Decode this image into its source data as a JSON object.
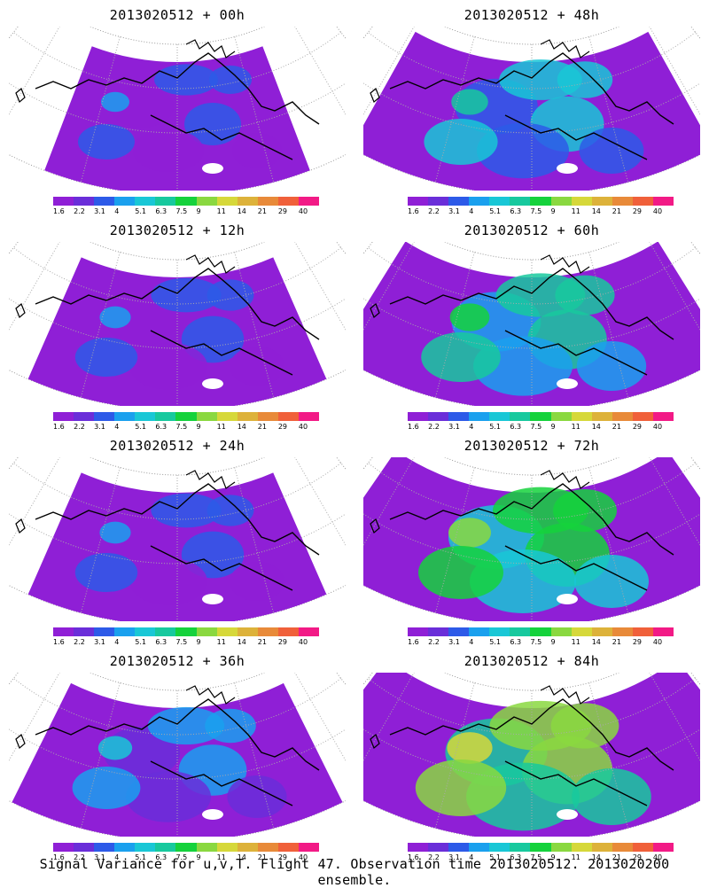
{
  "panels": [
    {
      "title": "2013020512 + 00h",
      "level": 0
    },
    {
      "title": "2013020512 + 48h",
      "level": 3
    },
    {
      "title": "2013020512 + 12h",
      "level": 1
    },
    {
      "title": "2013020512 + 60h",
      "level": 4
    },
    {
      "title": "2013020512 + 24h",
      "level": 1
    },
    {
      "title": "2013020512 + 72h",
      "level": 5
    },
    {
      "title": "2013020512 + 36h",
      "level": 2
    },
    {
      "title": "2013020512 + 84h",
      "level": 6
    }
  ],
  "colorbar": {
    "ticks": [
      "1.6",
      "2.2",
      "3.1",
      "4",
      "5.1",
      "6.3",
      "7.5",
      "9",
      "11",
      "14",
      "21",
      "29",
      "40"
    ],
    "colors": [
      "#8f1fd6",
      "#6a2ed9",
      "#2d5ae8",
      "#1aa0ee",
      "#19c7d6",
      "#17c99e",
      "#15d23c",
      "#8ad840",
      "#d6d83a",
      "#ddb23a",
      "#e88a39",
      "#f0603a",
      "#f21a86"
    ]
  },
  "caption": "Signal Variance for u,v,T. Flight 47. Observation time 2013020512. 2013020200 ensemble."
}
